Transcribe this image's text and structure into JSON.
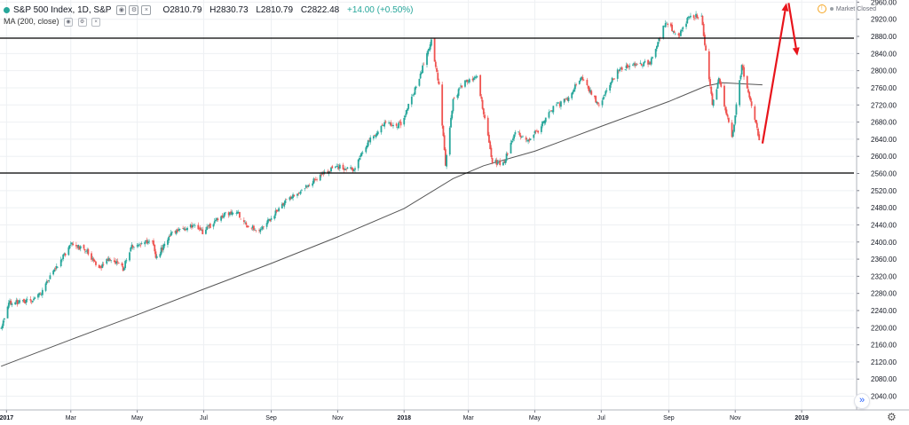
{
  "header": {
    "symbol_title": "S&P 500 Index, 1D, S&P",
    "open": "O2810.79",
    "high": "H2830.73",
    "low": "L2810.79",
    "close": "C2822.48",
    "change": "+14.00 (+0.50%)",
    "change_color": "#26a69a"
  },
  "indicator": {
    "label": "MA (200, close)"
  },
  "status": {
    "market": "Market Closed"
  },
  "colors": {
    "up": "#26a69a",
    "down": "#ef5350",
    "ma": "#555555",
    "level": "#000000",
    "arrow": "#e8141b"
  },
  "chart_data": {
    "type": "candlestick",
    "symbol": "S&P 500 Index",
    "interval": "1D",
    "x_axis": {
      "labels": [
        "2017",
        "Mar",
        "May",
        "Jul",
        "Sep",
        "Nov",
        "2018",
        "Mar",
        "May",
        "Jul",
        "Sep",
        "Nov",
        "2019"
      ],
      "label_dates": [
        "2017-01-01",
        "2017-03-01",
        "2017-05-01",
        "2017-07-01",
        "2017-09-01",
        "2017-11-01",
        "2018-01-01",
        "2018-03-01",
        "2018-05-01",
        "2018-07-01",
        "2018-09-01",
        "2018-11-01",
        "2019-01-01"
      ],
      "range": [
        "2016-12-26",
        "2019-02-18"
      ]
    },
    "y_axis": {
      "ticks": [
        2040,
        2080,
        2120,
        2160,
        2200,
        2240,
        2280,
        2320,
        2360,
        2400,
        2440,
        2480,
        2520,
        2560,
        2600,
        2640,
        2680,
        2720,
        2760,
        2800,
        2840,
        2880,
        2920,
        2960
      ],
      "ylim": [
        2008,
        2965
      ]
    },
    "price_path": [
      [
        "2016-12-27",
        2200
      ],
      [
        "2017-01-03",
        2258
      ],
      [
        "2017-01-20",
        2262
      ],
      [
        "2017-02-01",
        2278
      ],
      [
        "2017-02-15",
        2338
      ],
      [
        "2017-03-01",
        2395
      ],
      [
        "2017-03-15",
        2382
      ],
      [
        "2017-03-27",
        2340
      ],
      [
        "2017-04-05",
        2362
      ],
      [
        "2017-04-18",
        2338
      ],
      [
        "2017-04-26",
        2390
      ],
      [
        "2017-05-15",
        2402
      ],
      [
        "2017-05-18",
        2360
      ],
      [
        "2017-06-01",
        2420
      ],
      [
        "2017-06-20",
        2438
      ],
      [
        "2017-06-30",
        2422
      ],
      [
        "2017-07-15",
        2458
      ],
      [
        "2017-07-31",
        2472
      ],
      [
        "2017-08-10",
        2440
      ],
      [
        "2017-08-21",
        2425
      ],
      [
        "2017-08-28",
        2444
      ],
      [
        "2017-09-15",
        2500
      ],
      [
        "2017-09-30",
        2520
      ],
      [
        "2017-10-15",
        2554
      ],
      [
        "2017-10-31",
        2576
      ],
      [
        "2017-11-15",
        2568
      ],
      [
        "2017-11-30",
        2640
      ],
      [
        "2017-12-15",
        2676
      ],
      [
        "2017-12-29",
        2674
      ],
      [
        "2018-01-10",
        2748
      ],
      [
        "2018-01-26",
        2872
      ],
      [
        "2018-02-02",
        2762
      ],
      [
        "2018-02-08",
        2582
      ],
      [
        "2018-02-15",
        2732
      ],
      [
        "2018-02-26",
        2778
      ],
      [
        "2018-03-09",
        2786
      ],
      [
        "2018-03-23",
        2588
      ],
      [
        "2018-04-02",
        2582
      ],
      [
        "2018-04-13",
        2656
      ],
      [
        "2018-04-25",
        2640
      ],
      [
        "2018-05-04",
        2660
      ],
      [
        "2018-05-18",
        2714
      ],
      [
        "2018-06-01",
        2734
      ],
      [
        "2018-06-12",
        2786
      ],
      [
        "2018-06-29",
        2718
      ],
      [
        "2018-07-16",
        2802
      ],
      [
        "2018-07-31",
        2816
      ],
      [
        "2018-08-15",
        2818
      ],
      [
        "2018-08-29",
        2914
      ],
      [
        "2018-09-10",
        2878
      ],
      [
        "2018-09-20",
        2930
      ],
      [
        "2018-10-01",
        2924
      ],
      [
        "2018-10-11",
        2726
      ],
      [
        "2018-10-17",
        2780
      ],
      [
        "2018-10-29",
        2642
      ],
      [
        "2018-11-07",
        2812
      ],
      [
        "2018-11-19",
        2690
      ],
      [
        "2018-11-23",
        2632
      ]
    ],
    "moving_average": {
      "label": "MA (200, close)",
      "points": [
        [
          "2016-12-27",
          2110
        ],
        [
          "2017-03-01",
          2172
        ],
        [
          "2017-05-01",
          2230
        ],
        [
          "2017-07-01",
          2290
        ],
        [
          "2017-09-01",
          2350
        ],
        [
          "2017-11-01",
          2412
        ],
        [
          "2018-01-01",
          2478
        ],
        [
          "2018-02-15",
          2548
        ],
        [
          "2018-03-15",
          2578
        ],
        [
          "2018-05-01",
          2612
        ],
        [
          "2018-07-01",
          2670
        ],
        [
          "2018-09-01",
          2728
        ],
        [
          "2018-10-05",
          2764
        ],
        [
          "2018-10-20",
          2772
        ],
        [
          "2018-11-26",
          2767
        ]
      ]
    },
    "horizontal_levels": [
      2876,
      2561
    ],
    "annotations": {
      "up_arrow": {
        "from": [
          "2018-11-26",
          2630
        ],
        "to": [
          "2018-12-18",
          2958
        ]
      },
      "down_arrow": {
        "from": [
          "2018-12-20",
          2958
        ],
        "to": [
          "2018-12-28",
          2835
        ]
      }
    },
    "grid": true
  }
}
